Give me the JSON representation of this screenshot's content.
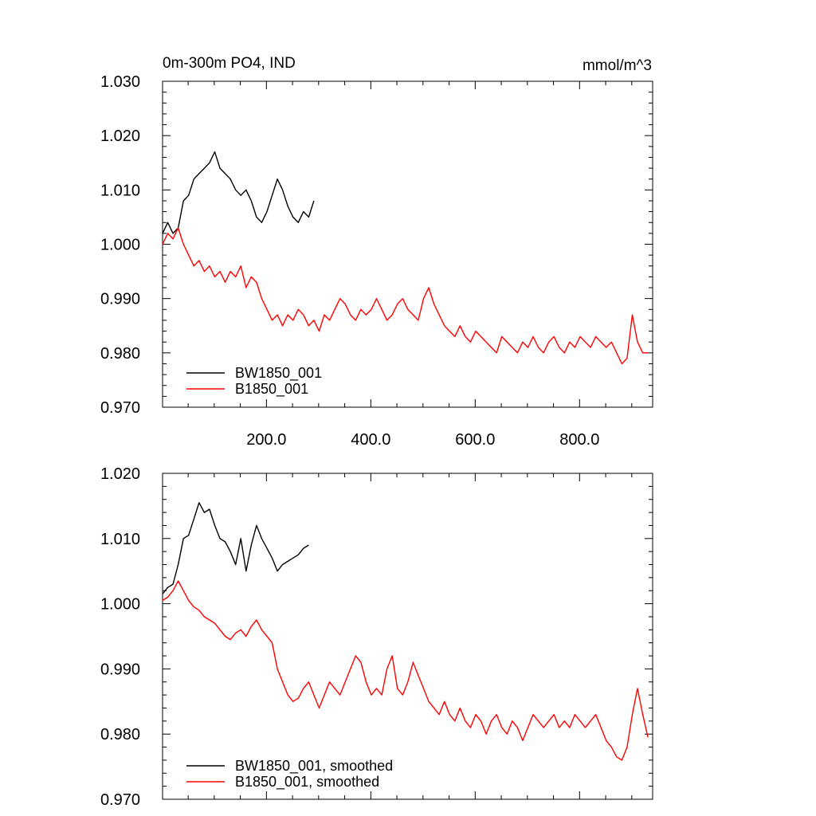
{
  "colors": {
    "black_series": "#000000",
    "red_series": "#ff0000",
    "axes": "#000000",
    "background": "#ffffff"
  },
  "chart_data": [
    {
      "type": "line",
      "title_left": "0m-300m PO4, IND",
      "title_right": "mmol/m^3",
      "xlim": [
        1,
        940
      ],
      "ylim": [
        0.97,
        1.03
      ],
      "x_ticks": [
        200,
        400,
        600,
        800
      ],
      "x_tick_labels": [
        "200.0",
        "400.0",
        "600.0",
        "800.0"
      ],
      "y_ticks": [
        0.97,
        0.98,
        0.99,
        1.0,
        1.01,
        1.02,
        1.03
      ],
      "y_tick_labels": [
        "0.970",
        "0.980",
        "0.990",
        "1.000",
        "1.010",
        "1.020",
        "1.030"
      ],
      "legend_position": "bottom-left",
      "grid": false,
      "series": [
        {
          "name": "BW1850_001",
          "color": "#000000",
          "x_step": 10,
          "x_start": 1,
          "values": [
            1.002,
            1.004,
            1.002,
            1.003,
            1.008,
            1.009,
            1.012,
            1.013,
            1.014,
            1.015,
            1.017,
            1.014,
            1.013,
            1.012,
            1.01,
            1.009,
            1.01,
            1.008,
            1.005,
            1.004,
            1.006,
            1.009,
            1.012,
            1.01,
            1.007,
            1.005,
            1.004,
            1.006,
            1.005,
            1.008
          ]
        },
        {
          "name": "B1850_001",
          "color": "#ff0000",
          "x_step": 10,
          "x_start": 1,
          "values": [
            1.0,
            1.002,
            1.001,
            1.003,
            1.0,
            0.998,
            0.996,
            0.997,
            0.995,
            0.996,
            0.994,
            0.995,
            0.993,
            0.995,
            0.994,
            0.996,
            0.992,
            0.994,
            0.993,
            0.99,
            0.988,
            0.986,
            0.987,
            0.985,
            0.987,
            0.986,
            0.988,
            0.987,
            0.985,
            0.986,
            0.984,
            0.987,
            0.986,
            0.988,
            0.99,
            0.989,
            0.987,
            0.986,
            0.988,
            0.987,
            0.988,
            0.99,
            0.988,
            0.986,
            0.987,
            0.989,
            0.99,
            0.988,
            0.987,
            0.986,
            0.99,
            0.992,
            0.989,
            0.987,
            0.985,
            0.984,
            0.983,
            0.985,
            0.983,
            0.982,
            0.984,
            0.983,
            0.982,
            0.981,
            0.98,
            0.983,
            0.982,
            0.981,
            0.98,
            0.982,
            0.981,
            0.983,
            0.981,
            0.98,
            0.982,
            0.983,
            0.981,
            0.98,
            0.982,
            0.981,
            0.983,
            0.982,
            0.981,
            0.983,
            0.982,
            0.981,
            0.982,
            0.98,
            0.978,
            0.979,
            0.987,
            0.982,
            0.98,
            0.98
          ]
        }
      ]
    },
    {
      "type": "line",
      "xlim": [
        1,
        940
      ],
      "ylim": [
        0.97,
        1.02
      ],
      "y_ticks": [
        0.97,
        0.98,
        0.99,
        1.0,
        1.01,
        1.02
      ],
      "y_tick_labels": [
        "0.970",
        "0.980",
        "0.990",
        "1.000",
        "1.010",
        "1.020"
      ],
      "legend_position": "bottom-left",
      "grid": false,
      "series": [
        {
          "name": "BW1850_001, smoothed",
          "color": "#000000",
          "x_step": 10,
          "x_start": 1,
          "values": [
            1.0015,
            1.0025,
            1.003,
            1.006,
            1.01,
            1.0105,
            1.013,
            1.0155,
            1.014,
            1.0145,
            1.012,
            1.01,
            1.0095,
            1.008,
            1.006,
            1.01,
            1.005,
            1.009,
            1.012,
            1.01,
            1.0085,
            1.007,
            1.005,
            1.006,
            1.0065,
            1.007,
            1.0075,
            1.0085,
            1.009
          ]
        },
        {
          "name": "B1850_001, smoothed",
          "color": "#ff0000",
          "x_step": 10,
          "x_start": 1,
          "values": [
            1.0005,
            1.001,
            1.002,
            1.0035,
            1.002,
            1.0005,
            0.9995,
            0.999,
            0.998,
            0.9975,
            0.997,
            0.996,
            0.995,
            0.9945,
            0.9955,
            0.996,
            0.995,
            0.9965,
            0.9975,
            0.996,
            0.995,
            0.994,
            0.99,
            0.988,
            0.986,
            0.985,
            0.9855,
            0.987,
            0.988,
            0.986,
            0.984,
            0.986,
            0.988,
            0.987,
            0.986,
            0.988,
            0.99,
            0.992,
            0.991,
            0.988,
            0.986,
            0.987,
            0.986,
            0.99,
            0.992,
            0.987,
            0.986,
            0.988,
            0.991,
            0.989,
            0.987,
            0.985,
            0.984,
            0.983,
            0.985,
            0.983,
            0.982,
            0.984,
            0.982,
            0.981,
            0.983,
            0.982,
            0.98,
            0.982,
            0.983,
            0.981,
            0.98,
            0.982,
            0.981,
            0.979,
            0.981,
            0.983,
            0.982,
            0.981,
            0.982,
            0.983,
            0.981,
            0.982,
            0.981,
            0.983,
            0.982,
            0.981,
            0.982,
            0.983,
            0.981,
            0.979,
            0.978,
            0.9765,
            0.976,
            0.978,
            0.983,
            0.987,
            0.983,
            0.9795
          ]
        }
      ]
    }
  ]
}
